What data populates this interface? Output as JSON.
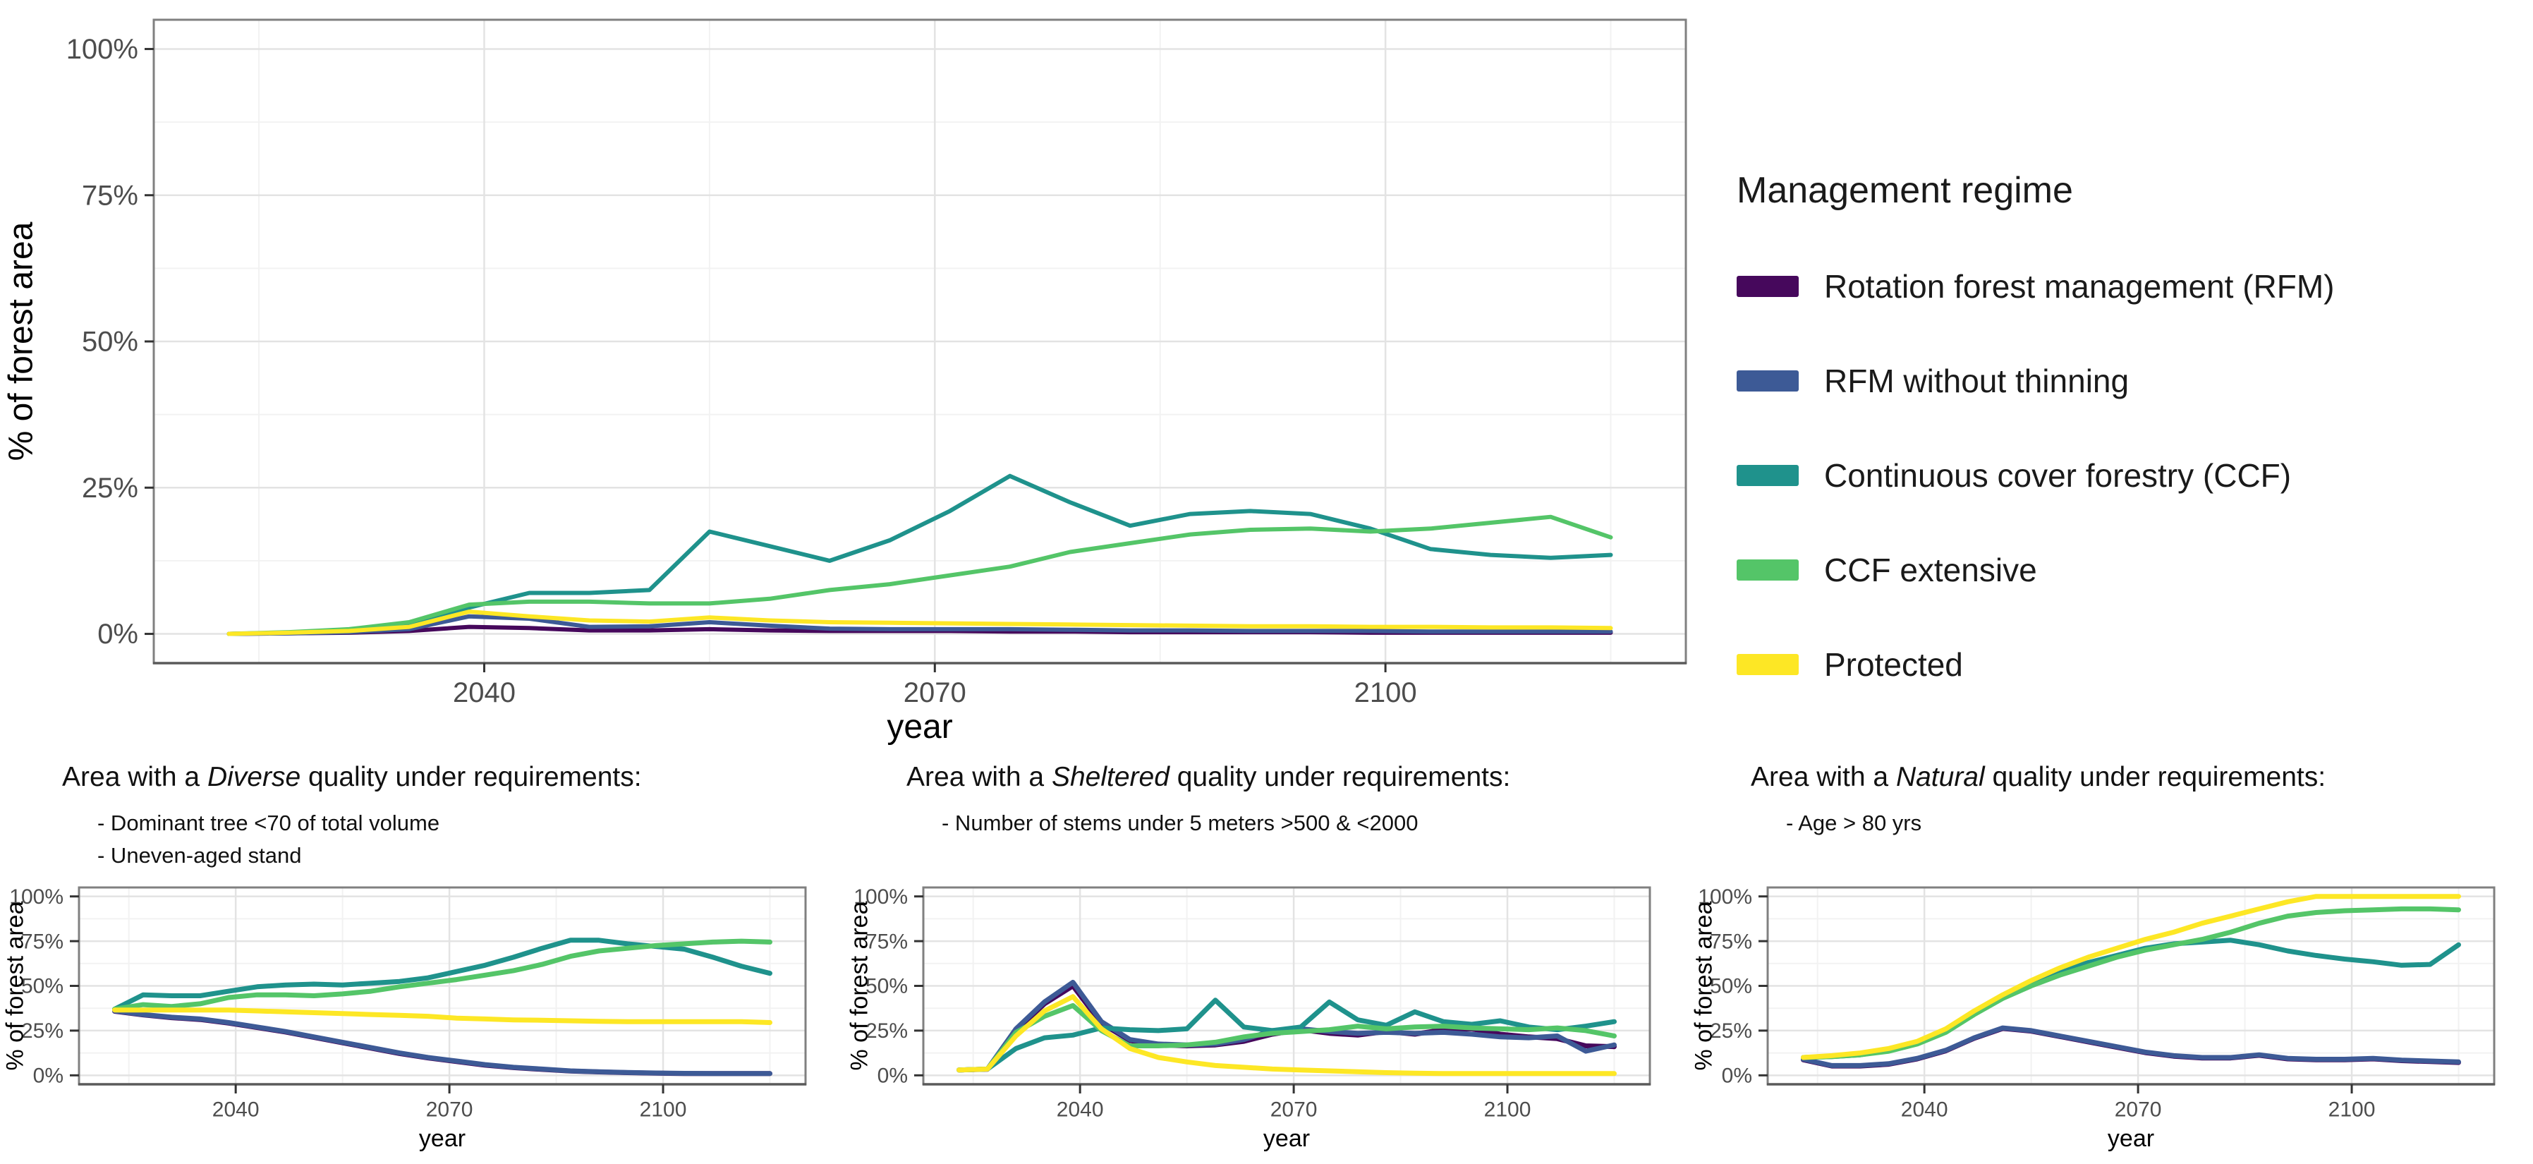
{
  "legend": {
    "title": "Management regime",
    "items": [
      {
        "label": "Rotation forest management (RFM)",
        "color": "#46085c"
      },
      {
        "label": "RFM without thinning",
        "color": "#3d5a96"
      },
      {
        "label": "Continuous cover forestry (CCF)",
        "color": "#1f928c"
      },
      {
        "label": "CCF extensive",
        "color": "#54c568"
      },
      {
        "label": "Protected",
        "color": "#fde725"
      }
    ]
  },
  "subplots": [
    {
      "title_prefix": "Area with a ",
      "title_emphasis": "Diverse",
      "title_suffix": " quality under requirements:",
      "requirements": [
        "- Dominant tree <70 of total volume",
        "- Uneven-aged stand"
      ]
    },
    {
      "title_prefix": "Area with a ",
      "title_emphasis": "Sheltered",
      "title_suffix": " quality under requirements:",
      "requirements": [
        "- Number of stems under 5 meters >500 & <2000"
      ]
    },
    {
      "title_prefix": "Area with a ",
      "title_emphasis": "Natural",
      "title_suffix": " quality under requirements:",
      "requirements": [
        "- Age > 80 yrs"
      ]
    }
  ],
  "chart_data": [
    {
      "type": "line",
      "title": "",
      "xlabel": "year",
      "ylabel": "% of forest area",
      "xlim": [
        2018,
        2120
      ],
      "ylim": [
        -5,
        105
      ],
      "x_tick_values": [
        2040,
        2070,
        2100
      ],
      "x_tick_labels": [
        "2040",
        "2070",
        "2100"
      ],
      "x_minor": [
        2025,
        2055,
        2085,
        2115
      ],
      "y_tick_values": [
        0,
        25,
        50,
        75,
        100
      ],
      "y_tick_labels": [
        "0%",
        "25%",
        "50%",
        "75%",
        "100%"
      ],
      "y_minor": [
        12.5,
        37.5,
        62.5,
        87.5
      ],
      "x": [
        2023,
        2027,
        2031,
        2035,
        2039,
        2043,
        2047,
        2051,
        2055,
        2059,
        2063,
        2067,
        2071,
        2075,
        2079,
        2083,
        2087,
        2091,
        2095,
        2099,
        2103,
        2107,
        2111,
        2115
      ],
      "series": [
        {
          "name": "Rotation forest management (RFM)",
          "values": [
            0,
            0.1,
            0.2,
            0.5,
            1.2,
            1.0,
            0.6,
            0.6,
            0.8,
            0.6,
            0.5,
            0.5,
            0.5,
            0.4,
            0.4,
            0.3,
            0.3,
            0.3,
            0.3,
            0.2,
            0.2,
            0.2,
            0.2,
            0.2
          ]
        },
        {
          "name": "RFM without thinning",
          "values": [
            0,
            0.1,
            0.3,
            0.8,
            3.0,
            2.6,
            1.2,
            1.3,
            2.0,
            1.4,
            0.9,
            0.8,
            0.8,
            0.8,
            0.7,
            0.6,
            0.6,
            0.5,
            0.5,
            0.5,
            0.4,
            0.4,
            0.4,
            0.4
          ]
        },
        {
          "name": "Continuous cover forestry (CCF)",
          "values": [
            0,
            0.2,
            0.5,
            1.5,
            4.5,
            7.0,
            7.0,
            7.5,
            17.5,
            15.0,
            12.5,
            16.0,
            21.0,
            27.0,
            22.5,
            18.5,
            20.5,
            21.0,
            20.5,
            18.0,
            14.5,
            13.5,
            13.0,
            13.5
          ]
        },
        {
          "name": "CCF extensive",
          "values": [
            0,
            0.3,
            0.8,
            2.0,
            5.0,
            5.5,
            5.5,
            5.2,
            5.2,
            6.0,
            7.5,
            8.5,
            10.0,
            11.5,
            14.0,
            15.5,
            17.0,
            17.8,
            18.0,
            17.5,
            18.0,
            19.0,
            20.0,
            16.5
          ]
        },
        {
          "name": "Protected",
          "values": [
            0,
            0.2,
            0.5,
            1.2,
            3.8,
            3.0,
            2.3,
            2.1,
            2.8,
            2.3,
            2.0,
            1.9,
            1.8,
            1.7,
            1.6,
            1.5,
            1.4,
            1.3,
            1.3,
            1.2,
            1.2,
            1.1,
            1.1,
            1.0
          ]
        }
      ]
    },
    {
      "type": "line",
      "title": "Area with a Diverse quality under requirements:",
      "xlabel": "year",
      "ylabel": "% of forest area",
      "xlim": [
        2018,
        2120
      ],
      "ylim": [
        -5,
        105
      ],
      "x_tick_values": [
        2040,
        2070,
        2100
      ],
      "x_tick_labels": [
        "2040",
        "2070",
        "2100"
      ],
      "x_minor": [
        2025,
        2055,
        2085,
        2115
      ],
      "y_tick_values": [
        0,
        25,
        50,
        75,
        100
      ],
      "y_tick_labels": [
        "0%",
        "25%",
        "50%",
        "75%",
        "100%"
      ],
      "y_minor": [
        12.5,
        37.5,
        62.5,
        87.5
      ],
      "x": [
        2023,
        2027,
        2031,
        2035,
        2039,
        2043,
        2047,
        2051,
        2055,
        2059,
        2063,
        2067,
        2071,
        2075,
        2079,
        2083,
        2087,
        2091,
        2095,
        2099,
        2103,
        2107,
        2111,
        2115
      ],
      "series": [
        {
          "name": "Rotation forest management (RFM)",
          "values": [
            35.8,
            33.8,
            32.2,
            31.2,
            29.2,
            26.7,
            24.2,
            21.2,
            18.2,
            15.2,
            12.2,
            9.7,
            7.7,
            5.7,
            4.3,
            3.3,
            2.4,
            1.9,
            1.5,
            1.2,
            1.0,
            1.0,
            1.0,
            1.0
          ]
        },
        {
          "name": "RFM without thinning",
          "values": [
            36,
            34,
            32.5,
            31.5,
            29.5,
            27,
            24.5,
            21.5,
            18.5,
            15.5,
            12.5,
            10,
            8,
            6,
            4.5,
            3.5,
            2.5,
            2,
            1.6,
            1.3,
            1.1,
            1.0,
            1.0,
            1.0
          ]
        },
        {
          "name": "Continuous cover forestry (CCF)",
          "values": [
            37,
            45,
            44.5,
            44.5,
            47,
            49.5,
            50.5,
            51,
            50.5,
            51.5,
            52.5,
            54.5,
            58,
            61.5,
            66,
            71,
            75.5,
            75.5,
            73.5,
            72,
            70.5,
            66,
            61,
            57
          ]
        },
        {
          "name": "CCF extensive",
          "values": [
            37,
            39.5,
            38.5,
            40,
            43.5,
            45,
            45,
            44.5,
            45.5,
            47,
            49.5,
            51.5,
            53.5,
            56,
            58.5,
            62,
            66.5,
            69.5,
            71,
            72.5,
            73.5,
            74.5,
            75,
            74.5
          ]
        },
        {
          "name": "Protected",
          "values": [
            36.5,
            36.5,
            36.5,
            36.5,
            36.5,
            36,
            35.5,
            35,
            34.5,
            34,
            33.5,
            33,
            32,
            31.5,
            31,
            30.8,
            30.5,
            30.2,
            30,
            30,
            30,
            30,
            30,
            29.5
          ]
        }
      ]
    },
    {
      "type": "line",
      "title": "Area with a Sheltered quality under requirements:",
      "xlabel": "year",
      "ylabel": "% of forest area",
      "xlim": [
        2018,
        2120
      ],
      "ylim": [
        -5,
        105
      ],
      "x_tick_values": [
        2040,
        2070,
        2100
      ],
      "x_tick_labels": [
        "2040",
        "2070",
        "2100"
      ],
      "x_minor": [
        2025,
        2055,
        2085,
        2115
      ],
      "y_tick_values": [
        0,
        25,
        50,
        75,
        100
      ],
      "y_tick_labels": [
        "0%",
        "25%",
        "50%",
        "75%",
        "100%"
      ],
      "y_minor": [
        12.5,
        37.5,
        62.5,
        87.5
      ],
      "x": [
        2023,
        2027,
        2031,
        2035,
        2039,
        2043,
        2047,
        2051,
        2055,
        2059,
        2063,
        2067,
        2071,
        2075,
        2079,
        2083,
        2087,
        2091,
        2095,
        2099,
        2103,
        2107,
        2111,
        2115
      ],
      "series": [
        {
          "name": "Rotation forest management (RFM)",
          "values": [
            3,
            3.4,
            25,
            40,
            50,
            29,
            19.5,
            17,
            16.5,
            17,
            19,
            23,
            25.5,
            23.5,
            22.5,
            24.5,
            23,
            25.5,
            26,
            23,
            21.5,
            20.5,
            16.5,
            16
          ]
        },
        {
          "name": "RFM without thinning",
          "values": [
            3,
            3.5,
            26,
            41,
            52,
            30,
            20,
            17.5,
            17,
            17.5,
            20,
            25,
            26,
            24.5,
            23.5,
            24,
            23.5,
            24,
            23,
            21.5,
            21,
            22,
            13.5,
            17
          ]
        },
        {
          "name": "Continuous cover forestry (CCF)",
          "values": [
            3,
            3.5,
            15,
            21,
            22.5,
            26.5,
            25.5,
            25,
            26,
            42,
            27,
            25,
            27,
            41,
            31,
            28,
            35.5,
            30,
            28.5,
            30.5,
            27,
            25.5,
            27.5,
            30
          ]
        },
        {
          "name": "CCF extensive",
          "values": [
            3,
            3.5,
            24,
            33,
            39,
            25,
            16.5,
            16.5,
            17,
            18.5,
            21.5,
            23.5,
            24.5,
            25.5,
            27.5,
            26,
            27,
            27.5,
            26.5,
            26,
            25.5,
            26.5,
            25,
            22
          ]
        },
        {
          "name": "Protected",
          "values": [
            3,
            3.5,
            22,
            36,
            44,
            26,
            15,
            10,
            7.5,
            5.5,
            4.5,
            3.5,
            3,
            2.5,
            2,
            1.5,
            1.2,
            1,
            1,
            1,
            1,
            1,
            1,
            1
          ]
        }
      ]
    },
    {
      "type": "line",
      "title": "Area with a Natural quality under requirements:",
      "xlabel": "year",
      "ylabel": "% of forest area",
      "xlim": [
        2018,
        2120
      ],
      "ylim": [
        -5,
        105
      ],
      "x_tick_values": [
        2040,
        2070,
        2100
      ],
      "x_tick_labels": [
        "2040",
        "2070",
        "2100"
      ],
      "x_minor": [
        2025,
        2055,
        2085,
        2115
      ],
      "y_tick_values": [
        0,
        25,
        50,
        75,
        100
      ],
      "y_tick_labels": [
        "0%",
        "25%",
        "50%",
        "75%",
        "100%"
      ],
      "y_minor": [
        12.5,
        37.5,
        62.5,
        87.5
      ],
      "x": [
        2023,
        2027,
        2031,
        2035,
        2039,
        2043,
        2047,
        2051,
        2055,
        2059,
        2063,
        2067,
        2071,
        2075,
        2079,
        2083,
        2087,
        2091,
        2095,
        2099,
        2103,
        2107,
        2111,
        2115
      ],
      "series": [
        {
          "name": "Rotation forest management (RFM)",
          "values": [
            8.7,
            5.2,
            5.2,
            6.2,
            9.2,
            13.7,
            20.7,
            26.2,
            24.7,
            21.7,
            18.7,
            15.7,
            12.7,
            10.7,
            9.7,
            9.7,
            11.2,
            9.2,
            8.7,
            8.7,
            9.2,
            8.2,
            7.7,
            7.2
          ]
        },
        {
          "name": "RFM without thinning",
          "values": [
            9,
            5.5,
            5.5,
            6.5,
            9.5,
            14,
            21,
            26.5,
            25,
            22,
            19,
            16,
            13,
            11,
            10,
            10,
            11.5,
            9.5,
            9,
            9,
            9.5,
            8.5,
            8,
            7.5
          ]
        },
        {
          "name": "Continuous cover forestry (CCF)",
          "values": [
            10,
            10.5,
            11.5,
            14,
            18,
            25,
            35,
            44,
            52,
            58,
            63,
            67,
            71,
            73.5,
            74.5,
            75.5,
            73,
            69.5,
            67,
            65,
            63.5,
            61.5,
            62,
            73
          ]
        },
        {
          "name": "CCF extensive",
          "values": [
            10,
            10.5,
            11.5,
            13.5,
            17.5,
            24,
            34,
            43,
            50,
            56,
            61,
            66,
            70,
            73,
            76,
            80,
            85,
            89,
            91,
            92,
            92.5,
            93,
            93,
            92.5
          ]
        },
        {
          "name": "Protected",
          "values": [
            10,
            11,
            12.5,
            15,
            19,
            26,
            36,
            45,
            53,
            60,
            66,
            71,
            76,
            80,
            85,
            89,
            93,
            97,
            100,
            100,
            100,
            100,
            100,
            100
          ]
        }
      ]
    }
  ]
}
